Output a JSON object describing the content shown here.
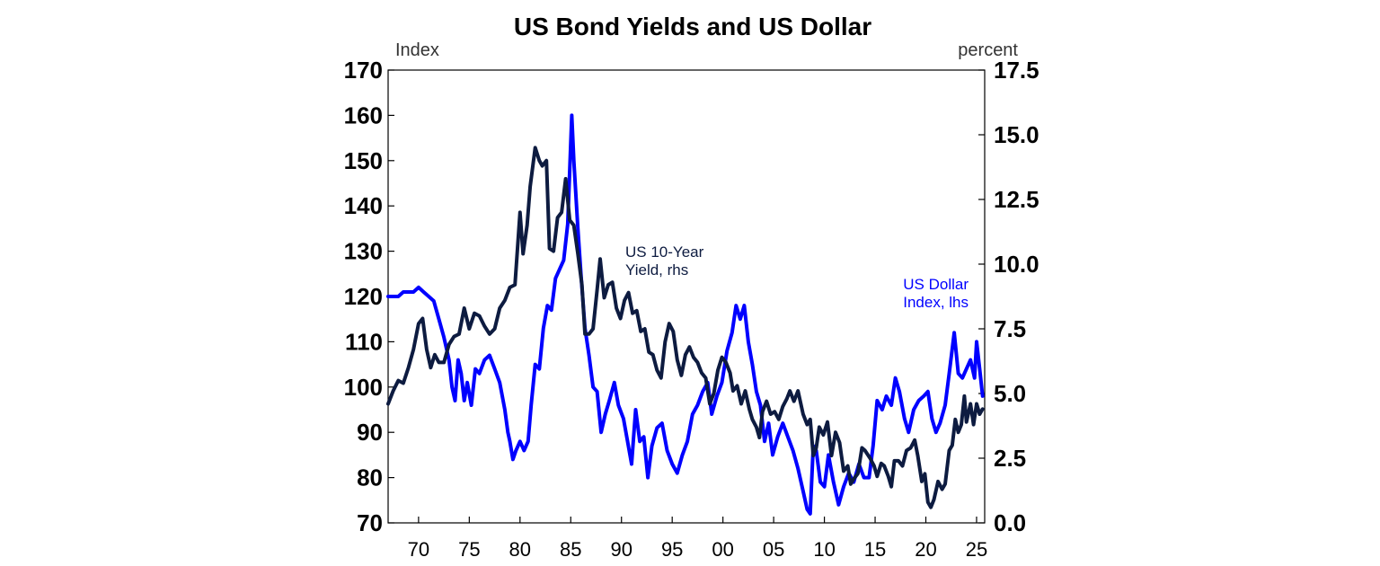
{
  "chart_data": {
    "type": "line",
    "title": "US Bond Yields and US Dollar",
    "left_axis": {
      "label": "Index",
      "ylim": [
        70,
        170
      ],
      "ticks": [
        "70",
        "80",
        "90",
        "100",
        "110",
        "120",
        "130",
        "140",
        "150",
        "160",
        "170"
      ]
    },
    "right_axis": {
      "label": "percent",
      "ylim": [
        0,
        17.5
      ],
      "ticks": [
        "0.0",
        "2.5",
        "5.0",
        "7.5",
        "10.0",
        "12.5",
        "15.0",
        "17.5"
      ]
    },
    "x_axis": {
      "range": [
        1967,
        2025.8
      ],
      "ticks": [
        {
          "year": 1970,
          "label": "70"
        },
        {
          "year": 1975,
          "label": "75"
        },
        {
          "year": 1980,
          "label": "80"
        },
        {
          "year": 1985,
          "label": "85"
        },
        {
          "year": 1990,
          "label": "90"
        },
        {
          "year": 1995,
          "label": "95"
        },
        {
          "year": 2000,
          "label": "00"
        },
        {
          "year": 2005,
          "label": "05"
        },
        {
          "year": 2010,
          "label": "10"
        },
        {
          "year": 2015,
          "label": "15"
        },
        {
          "year": 2020,
          "label": "20"
        },
        {
          "year": 2025,
          "label": "25"
        }
      ]
    },
    "series": [
      {
        "name": "US Dollar Index, lhs",
        "label_lines": [
          "US Dollar",
          "Index, lhs"
        ],
        "axis": "left",
        "color": "#0000ff",
        "points": [
          [
            1967.0,
            120
          ],
          [
            1967.5,
            120
          ],
          [
            1968.0,
            120
          ],
          [
            1968.5,
            121
          ],
          [
            1969.0,
            121
          ],
          [
            1969.5,
            121
          ],
          [
            1970.0,
            122
          ],
          [
            1970.5,
            121
          ],
          [
            1971.0,
            120
          ],
          [
            1971.5,
            119
          ],
          [
            1972.0,
            115
          ],
          [
            1972.5,
            111
          ],
          [
            1973.0,
            106
          ],
          [
            1973.3,
            100
          ],
          [
            1973.6,
            97
          ],
          [
            1973.9,
            106
          ],
          [
            1974.2,
            103
          ],
          [
            1974.5,
            97
          ],
          [
            1974.8,
            101
          ],
          [
            1975.2,
            96
          ],
          [
            1975.6,
            104
          ],
          [
            1976.0,
            103
          ],
          [
            1976.5,
            106
          ],
          [
            1977.0,
            107
          ],
          [
            1977.5,
            104
          ],
          [
            1978.0,
            101
          ],
          [
            1978.5,
            95
          ],
          [
            1978.8,
            90
          ],
          [
            1979.0,
            88
          ],
          [
            1979.3,
            84
          ],
          [
            1979.6,
            86
          ],
          [
            1980.0,
            88
          ],
          [
            1980.4,
            86
          ],
          [
            1980.8,
            88
          ],
          [
            1981.1,
            96
          ],
          [
            1981.5,
            105
          ],
          [
            1981.9,
            104
          ],
          [
            1982.3,
            113
          ],
          [
            1982.7,
            118
          ],
          [
            1983.1,
            117
          ],
          [
            1983.5,
            124
          ],
          [
            1983.9,
            126
          ],
          [
            1984.3,
            128
          ],
          [
            1984.7,
            136
          ],
          [
            1985.1,
            160
          ],
          [
            1985.3,
            150
          ],
          [
            1985.7,
            135
          ],
          [
            1986.0,
            125
          ],
          [
            1986.4,
            113
          ],
          [
            1986.8,
            107
          ],
          [
            1987.2,
            100
          ],
          [
            1987.6,
            99
          ],
          [
            1988.0,
            90
          ],
          [
            1988.4,
            94
          ],
          [
            1988.8,
            97
          ],
          [
            1989.3,
            101
          ],
          [
            1989.7,
            96
          ],
          [
            1990.2,
            93
          ],
          [
            1990.6,
            88
          ],
          [
            1991.0,
            83
          ],
          [
            1991.4,
            95
          ],
          [
            1991.8,
            88
          ],
          [
            1992.2,
            89
          ],
          [
            1992.6,
            80
          ],
          [
            1993.0,
            87
          ],
          [
            1993.5,
            91
          ],
          [
            1994.0,
            92
          ],
          [
            1994.5,
            86
          ],
          [
            1995.0,
            83
          ],
          [
            1995.5,
            81
          ],
          [
            1996.0,
            85
          ],
          [
            1996.5,
            88
          ],
          [
            1997.0,
            94
          ],
          [
            1997.5,
            96
          ],
          [
            1998.0,
            99
          ],
          [
            1998.5,
            101
          ],
          [
            1998.9,
            94
          ],
          [
            1999.4,
            98
          ],
          [
            1999.9,
            101
          ],
          [
            2000.4,
            108
          ],
          [
            2000.9,
            112
          ],
          [
            2001.3,
            118
          ],
          [
            2001.7,
            115
          ],
          [
            2002.1,
            118
          ],
          [
            2002.5,
            110
          ],
          [
            2002.9,
            105
          ],
          [
            2003.3,
            99
          ],
          [
            2003.7,
            96
          ],
          [
            2004.1,
            88
          ],
          [
            2004.5,
            92
          ],
          [
            2004.9,
            85
          ],
          [
            2005.4,
            89
          ],
          [
            2005.9,
            92
          ],
          [
            2006.4,
            89
          ],
          [
            2006.9,
            86
          ],
          [
            2007.4,
            82
          ],
          [
            2007.9,
            77
          ],
          [
            2008.3,
            73
          ],
          [
            2008.6,
            72
          ],
          [
            2008.9,
            87
          ],
          [
            2009.2,
            86
          ],
          [
            2009.6,
            79
          ],
          [
            2010.0,
            78
          ],
          [
            2010.4,
            85
          ],
          [
            2010.9,
            79
          ],
          [
            2011.4,
            74
          ],
          [
            2011.9,
            78
          ],
          [
            2012.4,
            81
          ],
          [
            2012.9,
            79
          ],
          [
            2013.4,
            83
          ],
          [
            2013.9,
            80
          ],
          [
            2014.4,
            80
          ],
          [
            2014.8,
            87
          ],
          [
            2015.2,
            97
          ],
          [
            2015.7,
            95
          ],
          [
            2016.1,
            98
          ],
          [
            2016.6,
            96
          ],
          [
            2017.0,
            102
          ],
          [
            2017.4,
            99
          ],
          [
            2017.9,
            93
          ],
          [
            2018.3,
            90
          ],
          [
            2018.8,
            95
          ],
          [
            2019.3,
            97
          ],
          [
            2019.8,
            98
          ],
          [
            2020.2,
            99
          ],
          [
            2020.6,
            93
          ],
          [
            2021.0,
            90
          ],
          [
            2021.4,
            92
          ],
          [
            2021.9,
            96
          ],
          [
            2022.3,
            103
          ],
          [
            2022.8,
            112
          ],
          [
            2023.2,
            103
          ],
          [
            2023.6,
            102
          ],
          [
            2024.0,
            104
          ],
          [
            2024.4,
            106
          ],
          [
            2024.8,
            102
          ],
          [
            2025.0,
            110
          ],
          [
            2025.3,
            104
          ],
          [
            2025.6,
            98
          ]
        ]
      },
      {
        "name": "US 10-Year Yield, rhs",
        "label_lines": [
          "US 10-Year",
          "Yield, rhs"
        ],
        "axis": "right",
        "color": "#0d1b40",
        "points": [
          [
            1967.0,
            4.6
          ],
          [
            1967.5,
            5.1
          ],
          [
            1968.0,
            5.5
          ],
          [
            1968.5,
            5.4
          ],
          [
            1969.0,
            6.0
          ],
          [
            1969.5,
            6.7
          ],
          [
            1970.0,
            7.7
          ],
          [
            1970.4,
            7.9
          ],
          [
            1970.8,
            6.7
          ],
          [
            1971.2,
            6.0
          ],
          [
            1971.6,
            6.5
          ],
          [
            1972.0,
            6.2
          ],
          [
            1972.5,
            6.2
          ],
          [
            1973.0,
            6.9
          ],
          [
            1973.5,
            7.2
          ],
          [
            1974.0,
            7.3
          ],
          [
            1974.5,
            8.3
          ],
          [
            1975.0,
            7.5
          ],
          [
            1975.5,
            8.1
          ],
          [
            1976.0,
            8.0
          ],
          [
            1976.5,
            7.6
          ],
          [
            1977.0,
            7.3
          ],
          [
            1977.5,
            7.5
          ],
          [
            1978.0,
            8.3
          ],
          [
            1978.5,
            8.6
          ],
          [
            1979.0,
            9.1
          ],
          [
            1979.5,
            9.2
          ],
          [
            1980.0,
            12.0
          ],
          [
            1980.3,
            10.4
          ],
          [
            1980.7,
            11.5
          ],
          [
            1981.0,
            13.0
          ],
          [
            1981.5,
            14.5
          ],
          [
            1981.9,
            14.0
          ],
          [
            1982.2,
            13.8
          ],
          [
            1982.6,
            14.0
          ],
          [
            1982.9,
            10.6
          ],
          [
            1983.3,
            10.5
          ],
          [
            1983.7,
            11.8
          ],
          [
            1984.1,
            12.0
          ],
          [
            1984.5,
            13.3
          ],
          [
            1984.9,
            11.7
          ],
          [
            1985.3,
            11.5
          ],
          [
            1985.7,
            10.4
          ],
          [
            1986.1,
            9.2
          ],
          [
            1986.4,
            7.3
          ],
          [
            1986.8,
            7.3
          ],
          [
            1987.2,
            7.5
          ],
          [
            1987.6,
            9.0
          ],
          [
            1987.9,
            10.2
          ],
          [
            1988.3,
            8.7
          ],
          [
            1988.7,
            9.2
          ],
          [
            1989.1,
            9.3
          ],
          [
            1989.5,
            8.3
          ],
          [
            1989.9,
            7.9
          ],
          [
            1990.3,
            8.6
          ],
          [
            1990.7,
            8.9
          ],
          [
            1991.1,
            8.1
          ],
          [
            1991.5,
            8.2
          ],
          [
            1991.9,
            7.4
          ],
          [
            1992.3,
            7.5
          ],
          [
            1992.7,
            6.6
          ],
          [
            1993.1,
            6.5
          ],
          [
            1993.5,
            5.9
          ],
          [
            1993.9,
            5.6
          ],
          [
            1994.3,
            7.0
          ],
          [
            1994.7,
            7.7
          ],
          [
            1995.1,
            7.4
          ],
          [
            1995.5,
            6.3
          ],
          [
            1995.9,
            5.7
          ],
          [
            1996.3,
            6.5
          ],
          [
            1996.7,
            6.8
          ],
          [
            1997.1,
            6.4
          ],
          [
            1997.5,
            6.2
          ],
          [
            1997.9,
            5.8
          ],
          [
            1998.3,
            5.6
          ],
          [
            1998.7,
            4.6
          ],
          [
            1999.1,
            5.0
          ],
          [
            1999.5,
            5.9
          ],
          [
            1999.9,
            6.4
          ],
          [
            2000.3,
            6.2
          ],
          [
            2000.7,
            5.8
          ],
          [
            2001.0,
            5.1
          ],
          [
            2001.4,
            5.3
          ],
          [
            2001.8,
            4.6
          ],
          [
            2002.2,
            5.1
          ],
          [
            2002.6,
            4.4
          ],
          [
            2002.9,
            4.0
          ],
          [
            2003.3,
            3.7
          ],
          [
            2003.6,
            3.3
          ],
          [
            2003.9,
            4.3
          ],
          [
            2004.3,
            4.7
          ],
          [
            2004.7,
            4.2
          ],
          [
            2005.1,
            4.3
          ],
          [
            2005.5,
            4.0
          ],
          [
            2005.9,
            4.5
          ],
          [
            2006.3,
            4.8
          ],
          [
            2006.6,
            5.1
          ],
          [
            2007.0,
            4.7
          ],
          [
            2007.4,
            5.1
          ],
          [
            2007.9,
            4.2
          ],
          [
            2008.3,
            3.8
          ],
          [
            2008.6,
            4.0
          ],
          [
            2008.9,
            2.6
          ],
          [
            2009.2,
            2.9
          ],
          [
            2009.5,
            3.7
          ],
          [
            2009.9,
            3.4
          ],
          [
            2010.3,
            3.9
          ],
          [
            2010.7,
            2.6
          ],
          [
            2011.1,
            3.5
          ],
          [
            2011.5,
            3.1
          ],
          [
            2011.9,
            2.0
          ],
          [
            2012.3,
            2.2
          ],
          [
            2012.6,
            1.5
          ],
          [
            2012.9,
            1.7
          ],
          [
            2013.3,
            1.9
          ],
          [
            2013.7,
            2.9
          ],
          [
            2014.0,
            2.8
          ],
          [
            2014.5,
            2.5
          ],
          [
            2014.9,
            2.2
          ],
          [
            2015.2,
            1.8
          ],
          [
            2015.6,
            2.3
          ],
          [
            2015.9,
            2.2
          ],
          [
            2016.3,
            1.8
          ],
          [
            2016.6,
            1.4
          ],
          [
            2016.9,
            2.4
          ],
          [
            2017.3,
            2.4
          ],
          [
            2017.7,
            2.2
          ],
          [
            2018.1,
            2.8
          ],
          [
            2018.5,
            2.9
          ],
          [
            2018.9,
            3.2
          ],
          [
            2019.2,
            2.6
          ],
          [
            2019.6,
            1.6
          ],
          [
            2019.9,
            1.9
          ],
          [
            2020.2,
            0.8
          ],
          [
            2020.5,
            0.6
          ],
          [
            2020.8,
            0.9
          ],
          [
            2021.2,
            1.6
          ],
          [
            2021.6,
            1.3
          ],
          [
            2021.9,
            1.5
          ],
          [
            2022.3,
            2.8
          ],
          [
            2022.6,
            3.0
          ],
          [
            2022.9,
            4.0
          ],
          [
            2023.2,
            3.5
          ],
          [
            2023.5,
            3.8
          ],
          [
            2023.8,
            4.9
          ],
          [
            2024.0,
            3.9
          ],
          [
            2024.4,
            4.6
          ],
          [
            2024.7,
            3.8
          ],
          [
            2025.0,
            4.6
          ],
          [
            2025.3,
            4.2
          ],
          [
            2025.6,
            4.4
          ]
        ]
      }
    ]
  }
}
